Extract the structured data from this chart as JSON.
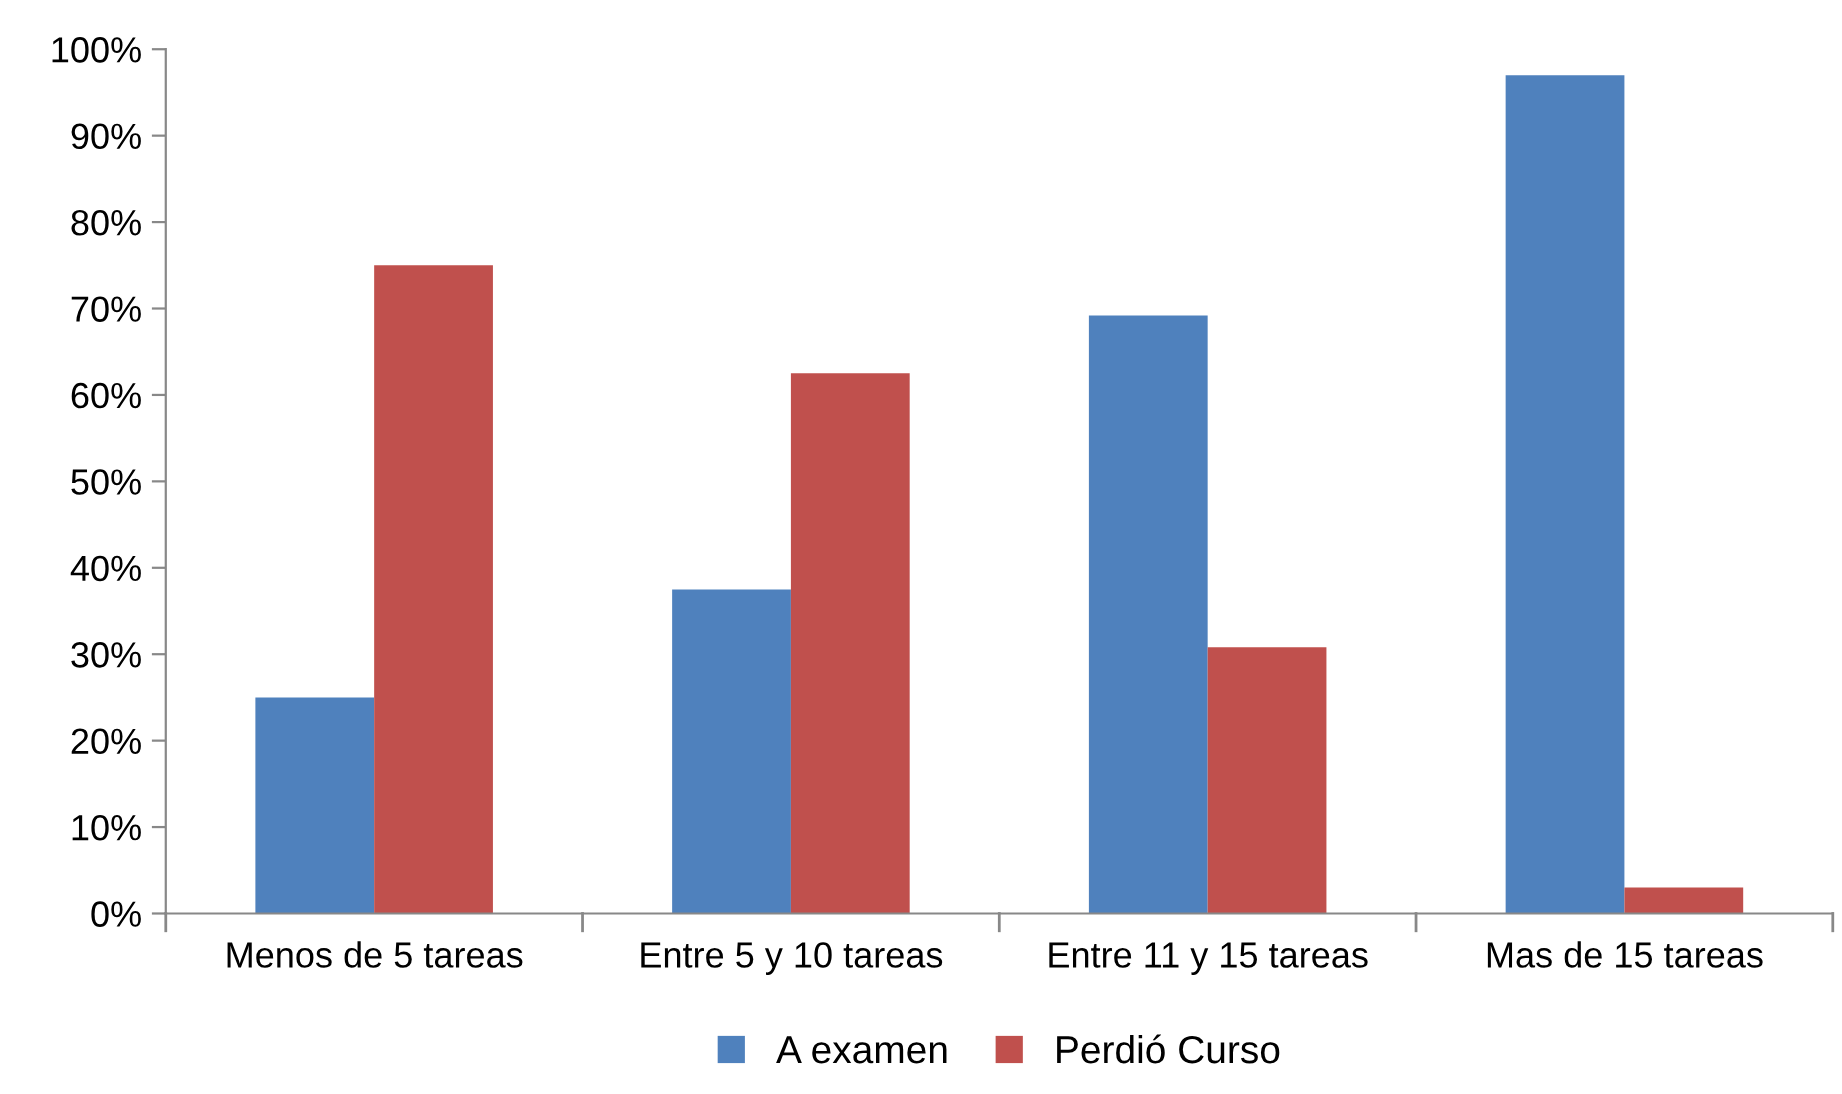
{
  "chart_data": {
    "type": "bar",
    "categories": [
      "Menos de 5 tareas",
      "Entre 5 y 10 tareas",
      "Entre 11 y 15 tareas",
      "Mas de 15 tareas"
    ],
    "series": [
      {
        "name": "A examen",
        "color": "#4f81bd",
        "values": [
          25,
          37.5,
          69.2,
          97
        ]
      },
      {
        "name": "Perdió Curso",
        "color": "#c0504d",
        "values": [
          75,
          62.5,
          30.8,
          3
        ]
      }
    ],
    "ylim": [
      0,
      100
    ],
    "yticks": [
      {
        "value": 0,
        "label": "0%"
      },
      {
        "value": 10,
        "label": "10%"
      },
      {
        "value": 20,
        "label": "20%"
      },
      {
        "value": 30,
        "label": "30%"
      },
      {
        "value": 40,
        "label": "40%"
      },
      {
        "value": 50,
        "label": "50%"
      },
      {
        "value": 60,
        "label": "60%"
      },
      {
        "value": 70,
        "label": "70%"
      },
      {
        "value": 80,
        "label": "80%"
      },
      {
        "value": 90,
        "label": "90%"
      },
      {
        "value": 100,
        "label": "100%"
      }
    ],
    "grid": false,
    "legend": "bottom"
  }
}
